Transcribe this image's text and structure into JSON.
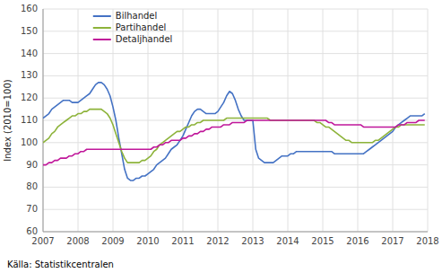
{
  "chart_data": {
    "type": "line",
    "y_label": "Index (2010=100)",
    "annotations": [
      "Källa: Statistikcentralen"
    ],
    "xlim": [
      2007.0,
      2018.0
    ],
    "ylim": [
      60,
      160
    ],
    "xticks": [
      2007,
      2008,
      2009,
      2010,
      2011,
      2012,
      2013,
      2014,
      2015,
      2016,
      2017,
      2018
    ],
    "yticks": [
      60,
      70,
      80,
      90,
      100,
      110,
      120,
      130,
      140,
      150,
      160
    ],
    "grid": true,
    "legend": "upper left",
    "x": [
      2007.0,
      2007.083,
      2007.167,
      2007.25,
      2007.333,
      2007.417,
      2007.5,
      2007.583,
      2007.667,
      2007.75,
      2007.833,
      2007.917,
      2008.0,
      2008.083,
      2008.167,
      2008.25,
      2008.333,
      2008.417,
      2008.5,
      2008.583,
      2008.667,
      2008.75,
      2008.833,
      2008.917,
      2009.0,
      2009.083,
      2009.167,
      2009.25,
      2009.333,
      2009.417,
      2009.5,
      2009.583,
      2009.667,
      2009.75,
      2009.833,
      2009.917,
      2010.0,
      2010.083,
      2010.167,
      2010.25,
      2010.333,
      2010.417,
      2010.5,
      2010.583,
      2010.667,
      2010.75,
      2010.833,
      2010.917,
      2011.0,
      2011.083,
      2011.167,
      2011.25,
      2011.333,
      2011.417,
      2011.5,
      2011.583,
      2011.667,
      2011.75,
      2011.833,
      2011.917,
      2012.0,
      2012.083,
      2012.167,
      2012.25,
      2012.333,
      2012.417,
      2012.5,
      2012.583,
      2012.667,
      2012.75,
      2012.833,
      2012.917,
      2013.0,
      2013.083,
      2013.167,
      2013.25,
      2013.333,
      2013.417,
      2013.5,
      2013.583,
      2013.667,
      2013.75,
      2013.833,
      2013.917,
      2014.0,
      2014.083,
      2014.167,
      2014.25,
      2014.333,
      2014.417,
      2014.5,
      2014.583,
      2014.667,
      2014.75,
      2014.833,
      2014.917,
      2015.0,
      2015.083,
      2015.167,
      2015.25,
      2015.333,
      2015.417,
      2015.5,
      2015.583,
      2015.667,
      2015.75,
      2015.833,
      2015.917,
      2016.0,
      2016.083,
      2016.167,
      2016.25,
      2016.333,
      2016.417,
      2016.5,
      2016.583,
      2016.667,
      2016.75,
      2016.833,
      2016.917,
      2017.0,
      2017.083,
      2017.167,
      2017.25,
      2017.333,
      2017.417,
      2017.5,
      2017.583,
      2017.667,
      2017.75,
      2017.833,
      2017.917
    ],
    "series": [
      {
        "name": "Bilhandel",
        "color": "#4472c4",
        "values": [
          111,
          112,
          113,
          115,
          116,
          117,
          118,
          119,
          119,
          119,
          118,
          118,
          118,
          119,
          120,
          121,
          122,
          124,
          126,
          127,
          127,
          126,
          124,
          121,
          116,
          110,
          102,
          95,
          88,
          84,
          83,
          83,
          84,
          84,
          85,
          85,
          86,
          87,
          88,
          90,
          91,
          92,
          93,
          95,
          97,
          98,
          99,
          101,
          103,
          106,
          109,
          112,
          114,
          115,
          115,
          114,
          113,
          113,
          113,
          113,
          114,
          116,
          118,
          121,
          123,
          122,
          119,
          115,
          112,
          110,
          110,
          110,
          110,
          97,
          93,
          92,
          91,
          91,
          91,
          91,
          92,
          93,
          94,
          94,
          94,
          95,
          95,
          96,
          96,
          96,
          96,
          96,
          96,
          96,
          96,
          96,
          96,
          96,
          96,
          96,
          95,
          95,
          95,
          95,
          95,
          95,
          95,
          95,
          95,
          95,
          95,
          96,
          97,
          98,
          99,
          100,
          101,
          102,
          103,
          104,
          105,
          107,
          108,
          109,
          110,
          111,
          112,
          112,
          112,
          112,
          112,
          113
        ]
      },
      {
        "name": "Partihandel",
        "color": "#8db33a",
        "values": [
          100,
          101,
          102,
          104,
          105,
          107,
          108,
          109,
          110,
          111,
          112,
          112,
          113,
          113,
          114,
          114,
          115,
          115,
          115,
          115,
          115,
          114,
          113,
          111,
          108,
          104,
          100,
          96,
          93,
          91,
          91,
          91,
          91,
          91,
          92,
          92,
          93,
          94,
          96,
          97,
          99,
          100,
          101,
          102,
          103,
          104,
          105,
          105,
          106,
          107,
          107,
          108,
          108,
          109,
          109,
          110,
          110,
          110,
          110,
          110,
          110,
          110,
          110,
          111,
          111,
          111,
          111,
          111,
          111,
          111,
          111,
          111,
          111,
          111,
          111,
          111,
          111,
          111,
          110,
          110,
          110,
          110,
          110,
          110,
          110,
          110,
          110,
          110,
          110,
          110,
          110,
          110,
          110,
          110,
          109,
          109,
          108,
          107,
          107,
          106,
          105,
          104,
          103,
          102,
          101,
          101,
          100,
          100,
          100,
          100,
          100,
          100,
          100,
          100,
          101,
          101,
          102,
          103,
          104,
          105,
          106,
          107,
          107,
          108,
          108,
          108,
          108,
          108,
          108,
          108,
          108,
          108
        ]
      },
      {
        "name": "Detaljhandel",
        "color": "#c0179a",
        "values": [
          90,
          90,
          91,
          91,
          92,
          92,
          93,
          93,
          93,
          94,
          94,
          95,
          95,
          96,
          96,
          97,
          97,
          97,
          97,
          97,
          97,
          97,
          97,
          97,
          97,
          97,
          97,
          97,
          97,
          97,
          97,
          97,
          97,
          97,
          97,
          97,
          97,
          97,
          98,
          98,
          99,
          99,
          100,
          100,
          101,
          101,
          101,
          101,
          102,
          102,
          103,
          103,
          104,
          104,
          105,
          105,
          106,
          106,
          107,
          107,
          107,
          107,
          108,
          108,
          108,
          109,
          109,
          109,
          109,
          109,
          110,
          110,
          110,
          110,
          110,
          110,
          110,
          110,
          110,
          110,
          110,
          110,
          110,
          110,
          110,
          110,
          110,
          110,
          110,
          110,
          110,
          110,
          110,
          110,
          110,
          110,
          110,
          110,
          109,
          109,
          108,
          108,
          108,
          108,
          108,
          108,
          108,
          108,
          108,
          108,
          107,
          107,
          107,
          107,
          107,
          107,
          107,
          107,
          107,
          107,
          107,
          107,
          108,
          108,
          108,
          109,
          109,
          109,
          109,
          110,
          110,
          110
        ]
      }
    ]
  }
}
